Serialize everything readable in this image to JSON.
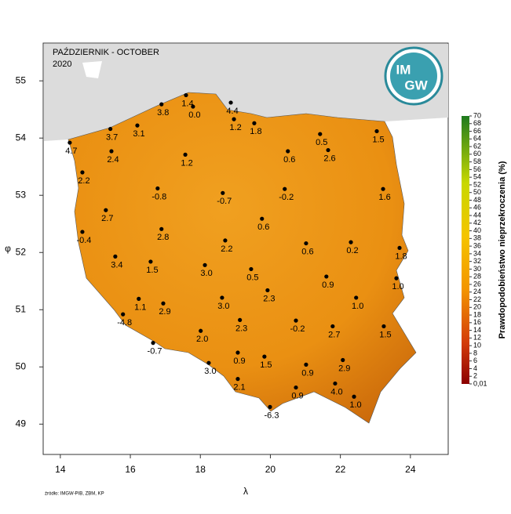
{
  "map": {
    "title": "PAŹDZIERNIK - OCTOBER",
    "subtitle": "2020",
    "x_label": "λ",
    "y_label": "φ",
    "source": "źródło: IMGW-PIB, ZBM, KP",
    "logo": {
      "line1": "IM",
      "line2": "GW"
    },
    "xlim": [
      13.51,
      25.08
    ],
    "ylim": [
      48.47,
      55.66
    ],
    "xticks": [
      14,
      16,
      18,
      20,
      22,
      24
    ],
    "yticks": [
      49,
      50,
      51,
      52,
      53,
      54,
      55
    ],
    "stations": {
      "lon": [
        17.59,
        17.79,
        16.89,
        18.87,
        18.96,
        19.54,
        15.43,
        16.2,
        14.27,
        15.46,
        17.57,
        21.42,
        23.04,
        20.5,
        21.65,
        14.63,
        16.78,
        18.64,
        20.41,
        23.22,
        15.3,
        19.76,
        16.89,
        14.63,
        18.71,
        21.02,
        22.3,
        23.69,
        15.57,
        16.58,
        18.13,
        19.45,
        21.6,
        23.6,
        19.92,
        16.24,
        16.94,
        18.62,
        22.45,
        15.79,
        19.13,
        20.73,
        21.78,
        23.24,
        18.01,
        16.65,
        19.07,
        19.83,
        22.07,
        18.24,
        21.02,
        19.07,
        21.85,
        20.73,
        22.39,
        19.99
      ],
      "lat": [
        54.75,
        54.55,
        54.59,
        54.62,
        54.33,
        54.26,
        54.16,
        54.22,
        53.92,
        53.77,
        53.71,
        54.07,
        54.12,
        53.77,
        53.79,
        53.4,
        53.12,
        53.04,
        53.11,
        53.11,
        52.74,
        52.59,
        52.41,
        52.36,
        52.21,
        52.16,
        52.18,
        52.08,
        51.93,
        51.84,
        51.78,
        51.71,
        51.58,
        51.55,
        51.34,
        51.19,
        51.11,
        51.21,
        51.21,
        50.92,
        50.82,
        50.81,
        50.71,
        50.71,
        50.63,
        50.42,
        50.25,
        50.18,
        50.12,
        50.07,
        50.04,
        49.79,
        49.71,
        49.64,
        49.48,
        49.3
      ],
      "values": [
        1.4,
        0,
        3.8,
        4.4,
        1.2,
        1.8,
        3.7,
        3.1,
        4.7,
        2.4,
        1.2,
        0.5,
        1.5,
        0.6,
        2.6,
        2.2,
        -0.8,
        -0.7,
        -0.2,
        1.6,
        2.7,
        0.6,
        2.8,
        -0.4,
        2.2,
        0.6,
        0.2,
        1.8,
        3.4,
        1.5,
        3,
        0.5,
        0.9,
        1,
        2.3,
        1.1,
        2.9,
        3,
        1,
        -4.8,
        2.3,
        -0.2,
        2.7,
        1.5,
        2,
        -0.7,
        0.9,
        1.5,
        2.9,
        3,
        0.9,
        2.1,
        4,
        0.9,
        1,
        -6.3
      ],
      "value_labels": [
        "1.4",
        "0.0",
        "3.8",
        "4.4",
        "1.2",
        "1.8",
        "3.7",
        "3.1",
        "4.7",
        "2.4",
        "1.2",
        "0.5",
        "1.5",
        "0.6",
        "2.6",
        "2.2",
        "-0.8",
        "-0.7",
        "-0.2",
        "1.6",
        "2.7",
        "0.6",
        "2.8",
        "-0.4",
        "2.2",
        "0.6",
        "0.2",
        "1.8",
        "3.4",
        "1.5",
        "3.0",
        "0.5",
        "0.9",
        "1.0",
        "2.3",
        "1.1",
        "2.9",
        "3.0",
        "1.0",
        "-4.8",
        "2.3",
        "-0.2",
        "2.7",
        "1.5",
        "2.0",
        "-0.7",
        "0.9",
        "1.5",
        "2.9",
        "3.0",
        "0.9",
        "2.1",
        "4.0",
        "0.9",
        "1.0",
        "-6.3"
      ]
    },
    "colorbar": {
      "title": "Prawdopodobieństwo nieprzekroczenia (%)",
      "lim": [
        0,
        70
      ],
      "ticks": [
        70,
        68,
        66,
        64,
        62,
        60,
        58,
        56,
        54,
        52,
        50,
        48,
        46,
        44,
        42,
        40,
        38,
        36,
        34,
        32,
        30,
        28,
        26,
        24,
        22,
        20,
        18,
        16,
        14,
        12,
        10,
        8,
        6,
        4,
        2,
        {
          "value": 0.01,
          "label": "0,01"
        }
      ]
    }
  }
}
